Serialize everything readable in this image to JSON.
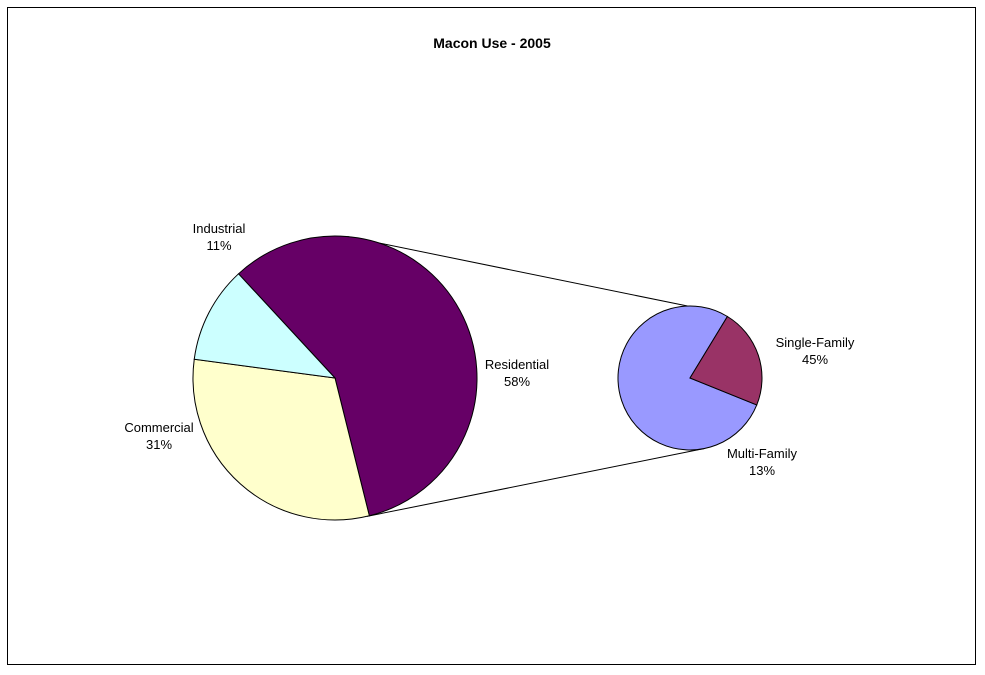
{
  "chart_data": {
    "type": "pie",
    "title": "Macon Use - 2005",
    "slices": [
      {
        "name": "Residential",
        "value": 58,
        "label_pct": "58%",
        "color": "#660066"
      },
      {
        "name": "Commercial",
        "value": 31,
        "label_pct": "31%",
        "color": "#FFFFCC"
      },
      {
        "name": "Industrial",
        "value": 11,
        "label_pct": "11%",
        "color": "#CCFFFF"
      }
    ],
    "breakout_of": "Residential",
    "breakout_slices": [
      {
        "name": "Single-Family",
        "value": 45,
        "label_pct": "45%",
        "color": "#9999FF"
      },
      {
        "name": "Multi-Family",
        "value": 13,
        "label_pct": "13%",
        "color": "#993366"
      }
    ],
    "legend": "none"
  }
}
